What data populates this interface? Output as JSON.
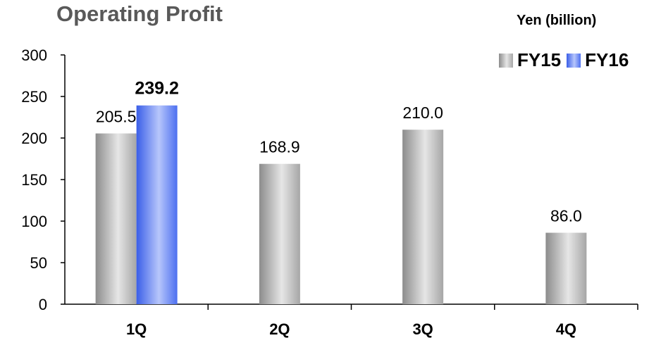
{
  "chart_data": {
    "type": "bar",
    "title": "Operating Profit",
    "unit_label": "Yen (billion)",
    "categories": [
      "1Q",
      "2Q",
      "3Q",
      "4Q"
    ],
    "series": [
      {
        "name": "FY15",
        "values": [
          205.5,
          168.9,
          210.0,
          86.0
        ],
        "labels": [
          "205.5",
          "168.9",
          "210.0",
          "86.0"
        ],
        "color": "#b8b8b8"
      },
      {
        "name": "FY16",
        "values": [
          239.2,
          null,
          null,
          null
        ],
        "labels": [
          "239.2",
          "",
          "",
          ""
        ],
        "color": "#5b7cf7"
      }
    ],
    "ylim": [
      0,
      300
    ],
    "yticks": [
      "0",
      "50",
      "100",
      "150",
      "200",
      "250",
      "300"
    ],
    "grid": false,
    "legend_position": "top-right"
  }
}
